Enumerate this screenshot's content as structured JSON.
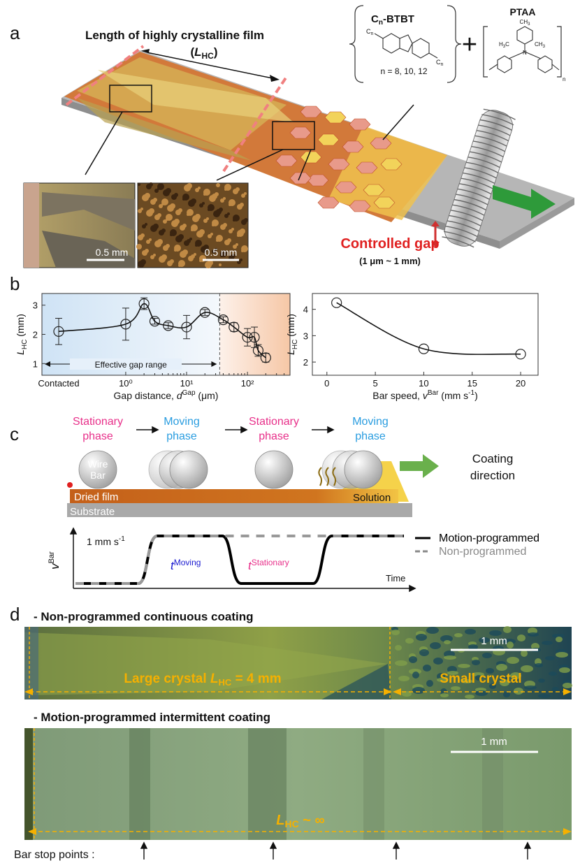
{
  "panel_a": {
    "label": "a",
    "title": "Length of highly crystalline film",
    "title_var": {
      "open": "(",
      "var": "L",
      "sub": "HC",
      "close": ")"
    },
    "molecule1": {
      "pre": "C",
      "sub": "n",
      "post": "-BTBT",
      "substituent": "C",
      "substituent_sub": "n",
      "note": "n = 8, 10, 12"
    },
    "plus": "+",
    "molecule2": {
      "name": "PTAA",
      "groups": [
        "CH",
        "3",
        "H",
        "3",
        "C",
        "CH",
        "3",
        "N"
      ],
      "index": "n"
    },
    "micrograph_left_scale": "0.5 mm",
    "micrograph_right_scale": "0.5 mm",
    "gap_title": "Controlled gap",
    "gap_range": "(1 μm ~ 1 mm)"
  },
  "panel_b": {
    "label": "b"
  },
  "chart_data": [
    {
      "type": "scatter",
      "log_x": true,
      "contacted": {
        "label": "Contacted",
        "value": 2.1,
        "error": 0.45
      },
      "x": [
        1,
        2,
        3,
        5,
        10,
        20,
        40,
        60,
        100,
        130,
        150,
        200
      ],
      "values": [
        2.35,
        3.05,
        2.45,
        2.3,
        2.25,
        2.75,
        2.5,
        2.25,
        1.9,
        1.9,
        1.45,
        1.2
      ],
      "errors": [
        0.55,
        0.2,
        0.1,
        0.1,
        0.4,
        0.1,
        0.1,
        0.15,
        0.3,
        0.35,
        0.2,
        0.15
      ],
      "xlim": [
        0.042,
        500
      ],
      "xticks": [
        {
          "value": 1,
          "label": "10⁰"
        },
        {
          "value": 10,
          "label": "10¹"
        },
        {
          "value": 100,
          "label": "10²"
        }
      ],
      "ylim": [
        0.6,
        3.4
      ],
      "yticks": [
        1,
        2,
        3
      ],
      "threshold_x": 35,
      "annotation": "Effective gap range",
      "xlabel": {
        "text": "Gap distance, ",
        "var": "d",
        "sup": "Gap",
        "unit": " (μm)"
      },
      "ylabel": {
        "var": "L",
        "sub": "HC",
        "unit": " (mm)"
      },
      "color": "#222222"
    },
    {
      "type": "scatter",
      "x": [
        1,
        10,
        20
      ],
      "values": [
        4.25,
        2.5,
        2.3
      ],
      "xlim": [
        -1.5,
        21.8
      ],
      "xticks": [
        0,
        5,
        10,
        15,
        20
      ],
      "ylim": [
        1.5,
        4.6
      ],
      "yticks": [
        2,
        3,
        4
      ],
      "xlabel": {
        "text": "Bar speed, ",
        "var": "v",
        "sup": "Bar",
        "unit": " (mm s",
        "unit_sup": "-1",
        "close": ")"
      },
      "ylabel": {
        "var": "L",
        "sub": "HC",
        "unit": " (mm)"
      },
      "color": "#222222"
    }
  ],
  "panel_c": {
    "label": "c",
    "phases": [
      {
        "lines": [
          "Stationary",
          "phase"
        ],
        "color": "#e8308a"
      },
      {
        "lines": [
          "Moving",
          "phase"
        ],
        "color": "#2a9de0"
      },
      {
        "lines": [
          "Stationary",
          "phase"
        ],
        "color": "#e8308a"
      },
      {
        "lines": [
          "Moving",
          "phase"
        ],
        "color": "#2a9de0"
      }
    ],
    "wire_bar": [
      "Wire",
      "Bar"
    ],
    "direction": [
      "Coating",
      "direction"
    ],
    "dried_film": "Dried film",
    "substrate": "Substrate",
    "solution": "Solution",
    "plot": {
      "ylabel": {
        "var": "v",
        "sup": "Bar"
      },
      "speed": {
        "text": "1 mm s",
        "sup": "-1"
      },
      "t_moving": {
        "var": "t",
        "sup": "Moving"
      },
      "t_stationary": {
        "var": "t",
        "sup": "Stationary"
      },
      "xlabel": "Time",
      "legend": [
        {
          "name": "Motion-programmed",
          "color": "#000000"
        },
        {
          "name": "Non-programmed",
          "color": "#888888"
        }
      ]
    }
  },
  "panel_d": {
    "label": "d",
    "top_title": "- Non-programmed continuous coating",
    "top_scale": "1 mm",
    "large": {
      "text": "Large crystal ",
      "var": "L",
      "sub": "HC",
      "rest": " = 4 mm"
    },
    "small": "Small crystal",
    "bottom_title": "- Motion-programmed intermittent coating",
    "bottom_scale": "1 mm",
    "infinite": {
      "var": "L",
      "sub": "HC",
      "rest": " ~ ∞"
    },
    "stop_points": "Bar stop points :"
  }
}
